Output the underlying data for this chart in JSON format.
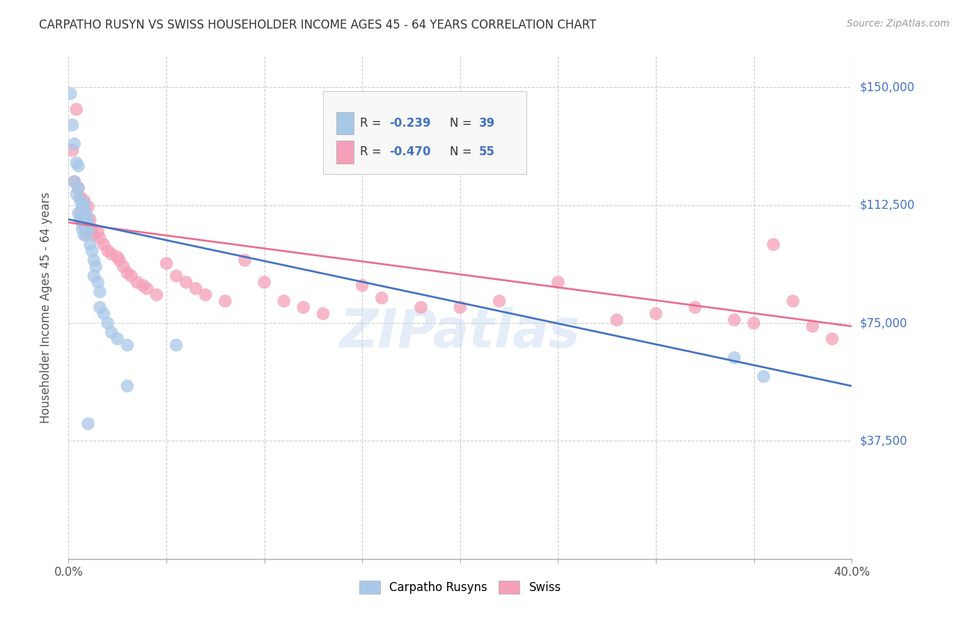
{
  "title": "CARPATHO RUSYN VS SWISS HOUSEHOLDER INCOME AGES 45 - 64 YEARS CORRELATION CHART",
  "source": "Source: ZipAtlas.com",
  "ylabel": "Householder Income Ages 45 - 64 years",
  "xlim": [
    0.0,
    0.4
  ],
  "ylim": [
    0,
    160000
  ],
  "xticks": [
    0.0,
    0.05,
    0.1,
    0.15,
    0.2,
    0.25,
    0.3,
    0.35,
    0.4
  ],
  "xticklabels": [
    "0.0%",
    "",
    "",
    "",
    "",
    "",
    "",
    "",
    "40.0%"
  ],
  "yticks": [
    0,
    37500,
    75000,
    112500,
    150000
  ],
  "yticklabels_right": [
    "",
    "$37,500",
    "$75,000",
    "$112,500",
    "$150,000"
  ],
  "blue_color": "#a8c8e8",
  "pink_color": "#f4a0b8",
  "blue_line_color": "#4472c4",
  "pink_line_color": "#e87090",
  "legend_label_blue": "Carpatho Rusyns",
  "legend_label_pink": "Swiss",
  "blue_scatter_x": [
    0.001,
    0.002,
    0.003,
    0.003,
    0.004,
    0.004,
    0.005,
    0.005,
    0.005,
    0.006,
    0.006,
    0.007,
    0.007,
    0.007,
    0.008,
    0.008,
    0.008,
    0.009,
    0.009,
    0.01,
    0.01,
    0.011,
    0.012,
    0.013,
    0.013,
    0.014,
    0.015,
    0.016,
    0.016,
    0.018,
    0.02,
    0.022,
    0.025,
    0.03,
    0.03,
    0.055,
    0.34,
    0.355,
    0.01
  ],
  "blue_scatter_y": [
    148000,
    138000,
    132000,
    120000,
    126000,
    116000,
    125000,
    118000,
    110000,
    114000,
    108000,
    112000,
    107000,
    105000,
    113000,
    109000,
    103000,
    110000,
    105000,
    108000,
    104000,
    100000,
    98000,
    95000,
    90000,
    93000,
    88000,
    85000,
    80000,
    78000,
    75000,
    72000,
    70000,
    68000,
    55000,
    68000,
    64000,
    58000,
    43000
  ],
  "pink_scatter_x": [
    0.002,
    0.003,
    0.004,
    0.005,
    0.006,
    0.006,
    0.007,
    0.007,
    0.008,
    0.008,
    0.009,
    0.01,
    0.011,
    0.012,
    0.013,
    0.015,
    0.016,
    0.018,
    0.02,
    0.022,
    0.025,
    0.026,
    0.028,
    0.03,
    0.032,
    0.035,
    0.038,
    0.04,
    0.045,
    0.05,
    0.055,
    0.06,
    0.065,
    0.07,
    0.08,
    0.09,
    0.1,
    0.11,
    0.12,
    0.13,
    0.15,
    0.16,
    0.18,
    0.2,
    0.22,
    0.25,
    0.28,
    0.3,
    0.32,
    0.34,
    0.35,
    0.36,
    0.37,
    0.38,
    0.39
  ],
  "pink_scatter_y": [
    130000,
    120000,
    143000,
    118000,
    115000,
    110000,
    112000,
    108000,
    106000,
    114000,
    103000,
    112000,
    108000,
    105000,
    103000,
    104000,
    102000,
    100000,
    98000,
    97000,
    96000,
    95000,
    93000,
    91000,
    90000,
    88000,
    87000,
    86000,
    84000,
    94000,
    90000,
    88000,
    86000,
    84000,
    82000,
    95000,
    88000,
    82000,
    80000,
    78000,
    87000,
    83000,
    80000,
    80000,
    82000,
    88000,
    76000,
    78000,
    80000,
    76000,
    75000,
    100000,
    82000,
    74000,
    70000
  ],
  "blue_line_x": [
    0.0,
    0.4
  ],
  "blue_line_y": [
    108000,
    55000
  ],
  "pink_line_x": [
    0.0,
    0.4
  ],
  "pink_line_y": [
    107000,
    74000
  ],
  "watermark": "ZIPatlas",
  "grid_color": "#cccccc",
  "bg_color": "#ffffff",
  "title_color": "#333333",
  "axis_label_color": "#555555",
  "ytick_color": "#4472c4",
  "xtick_color": "#555555"
}
